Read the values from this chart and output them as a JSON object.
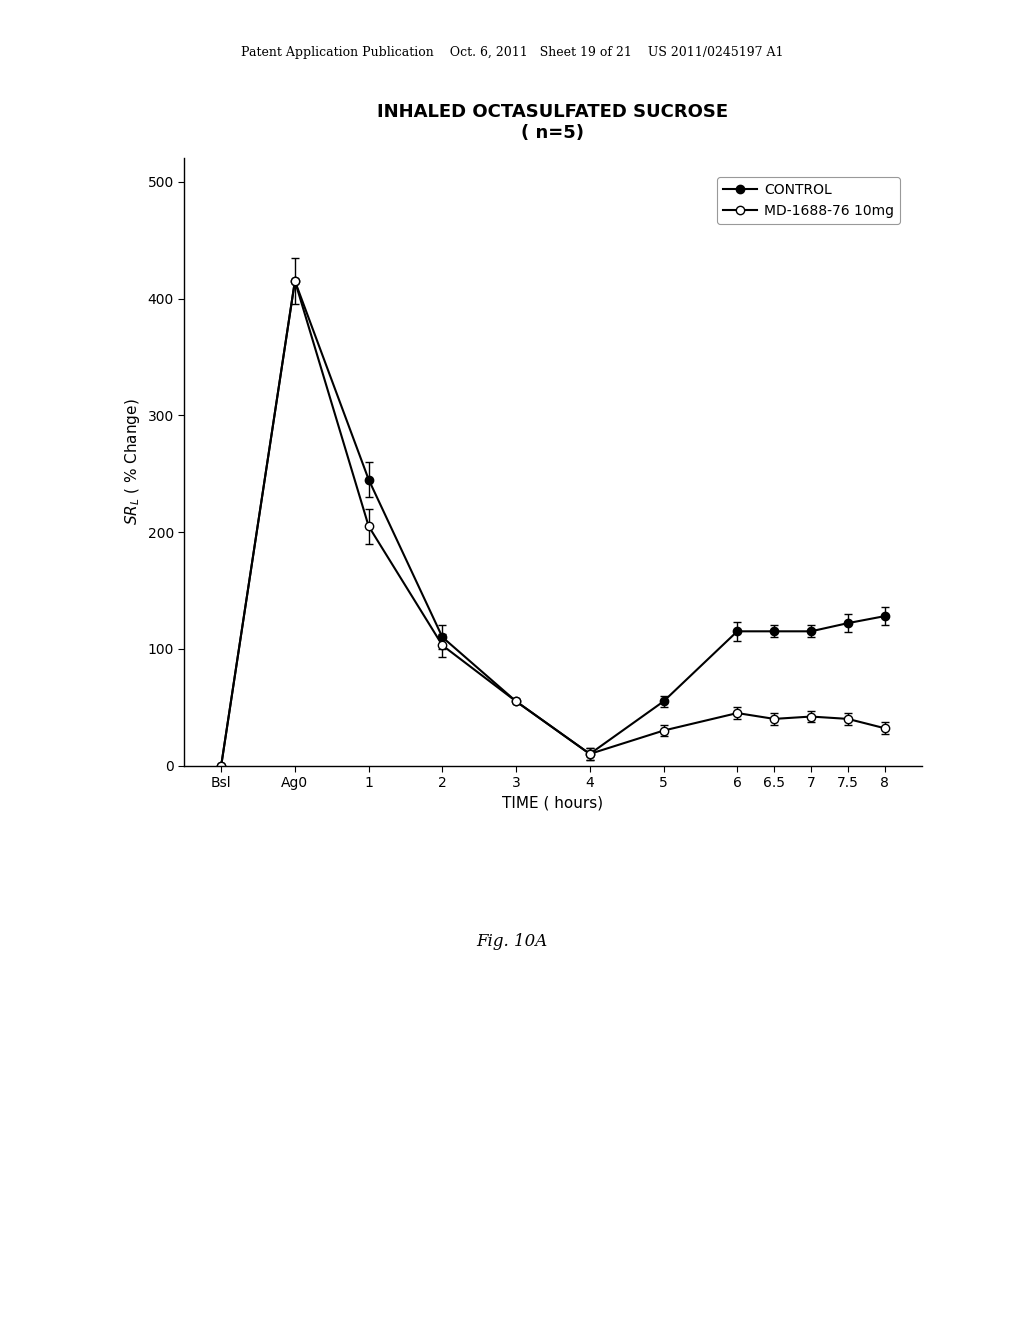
{
  "title_line1": "INHALED OCTASULFATED SUCROSE",
  "title_line2": "( n=5)",
  "xlabel": "TIME ( hours)",
  "ylabel": "SR ₂ ( % Change)",
  "x_tick_labels": [
    "Bsl",
    "Ag0",
    "1",
    "2",
    "3",
    "4",
    "5",
    "6",
    "6.5",
    "7",
    "7.5",
    "8"
  ],
  "x_positions": [
    0,
    1,
    2,
    3,
    4,
    5,
    6,
    7,
    7.5,
    8,
    8.5,
    9
  ],
  "control_y": [
    0,
    415,
    245,
    110,
    55,
    10,
    55,
    115,
    115,
    115,
    122,
    128
  ],
  "control_yerr": [
    0,
    20,
    15,
    10,
    0,
    5,
    5,
    8,
    5,
    5,
    8,
    8
  ],
  "treatment_y": [
    0,
    415,
    205,
    103,
    55,
    10,
    30,
    45,
    40,
    42,
    40,
    32
  ],
  "treatment_yerr": [
    0,
    0,
    15,
    10,
    0,
    5,
    5,
    5,
    5,
    5,
    5,
    5
  ],
  "ylim": [
    0,
    520
  ],
  "yticks": [
    0,
    100,
    200,
    300,
    400,
    500
  ],
  "control_label": "CONTROL",
  "treatment_label": "MD-1688-76 10mg",
  "bg_color": "#ffffff",
  "line_color": "#000000",
  "header_text": "Patent Application Publication    Oct. 6, 2011   Sheet 19 of 21    US 2011/0245197 A1",
  "footer_text": "Fig. 10A"
}
